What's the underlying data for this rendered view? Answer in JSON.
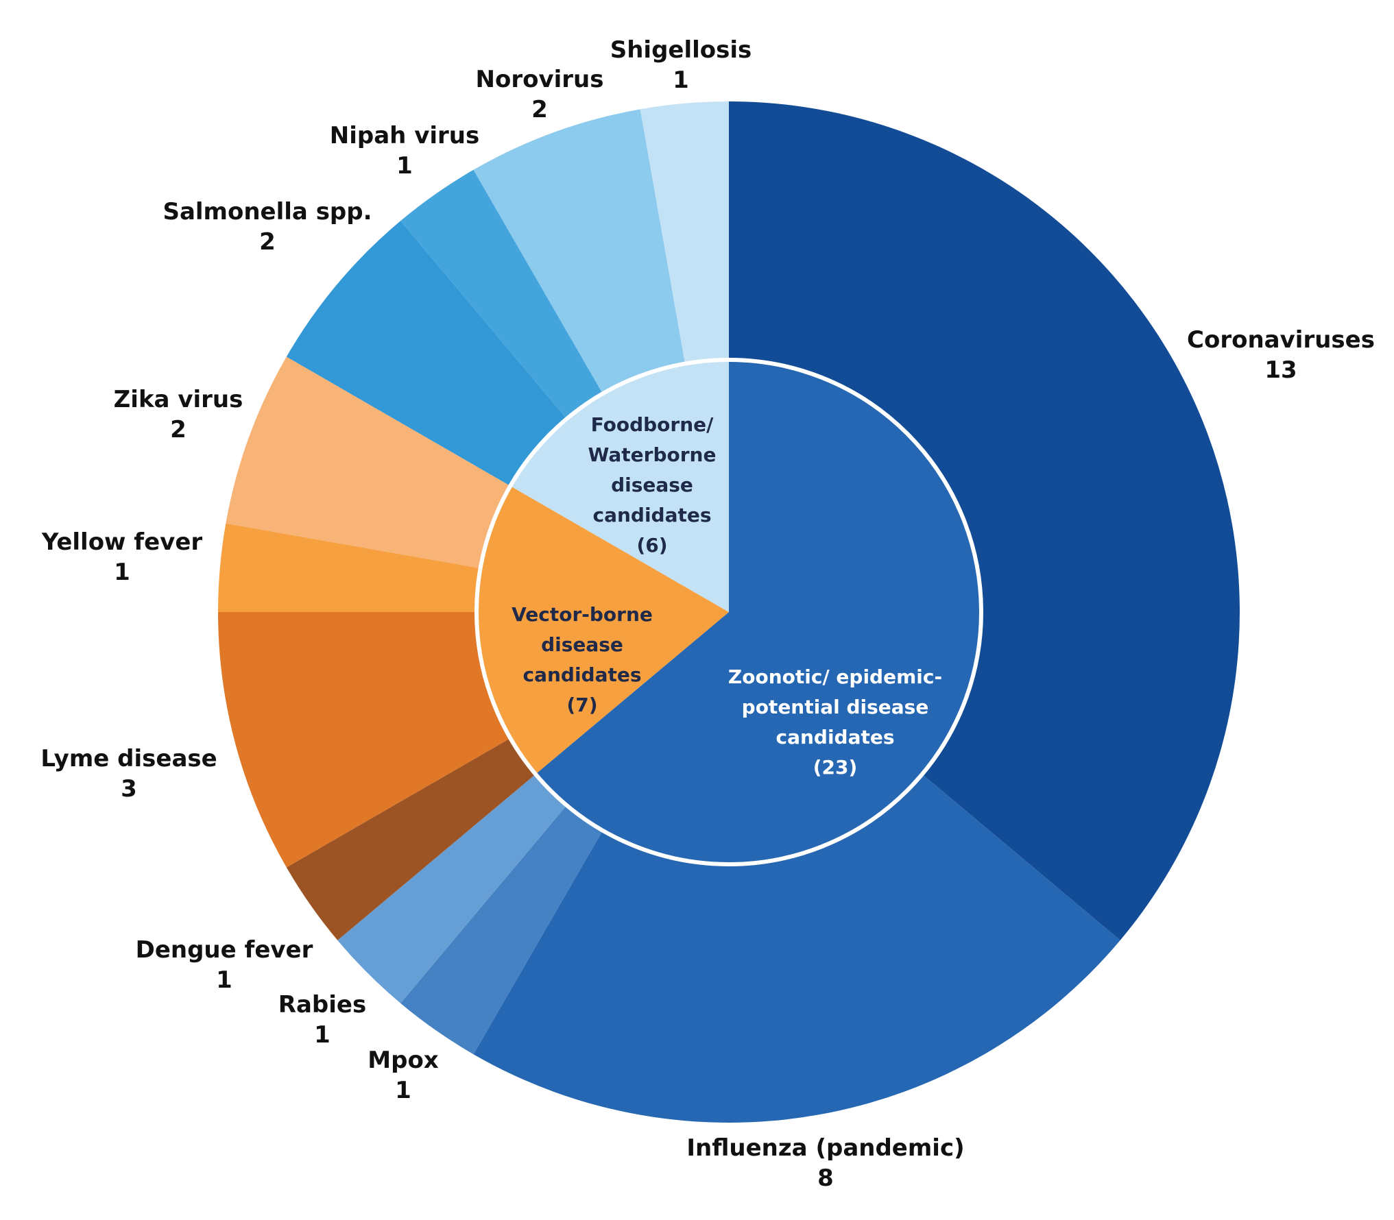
{
  "chart_data": {
    "type": "sunburst",
    "groups": [
      {
        "name": "Zoonotic/ epidemic-potential disease candidates",
        "value": 23,
        "value_label": "(23)",
        "color": "#2667b3",
        "children": [
          {
            "name": "Coronaviruses",
            "value": 13,
            "color": "#124c96"
          },
          {
            "name": "Influenza (pandemic)",
            "value": 8,
            "color": "#2667b3"
          },
          {
            "name": "Mpox",
            "value": 1,
            "color": "#4482c4"
          },
          {
            "name": "Rabies",
            "value": 1,
            "color": "#669fd6"
          }
        ]
      },
      {
        "name": "Vector-borne disease candidates",
        "value": 7,
        "value_label": "(7)",
        "color": "#f6a040",
        "children": [
          {
            "name": "Dengue fever",
            "value": 1,
            "color": "#9c5425"
          },
          {
            "name": "Lyme disease",
            "value": 3,
            "color": "#e07828"
          },
          {
            "name": "Yellow fever",
            "value": 1,
            "color": "#f6a040"
          },
          {
            "name": "Zika virus",
            "value": 2,
            "color": "#f8b377"
          }
        ]
      },
      {
        "name": "Foodborne/ Waterborne disease candidates",
        "value": 6,
        "value_label": "(6)",
        "color": "#c4e2f6",
        "children": [
          {
            "name": "Salmonella spp.",
            "value": 2,
            "color": "#3399d6"
          },
          {
            "name": "Nipah virus",
            "value": 1,
            "color": "#44a5dd"
          },
          {
            "name": "Norovirus",
            "value": 2,
            "color": "#8ccaee"
          },
          {
            "name": "Shigellosis",
            "value": 1,
            "color": "#c4e2f6"
          }
        ]
      }
    ]
  }
}
